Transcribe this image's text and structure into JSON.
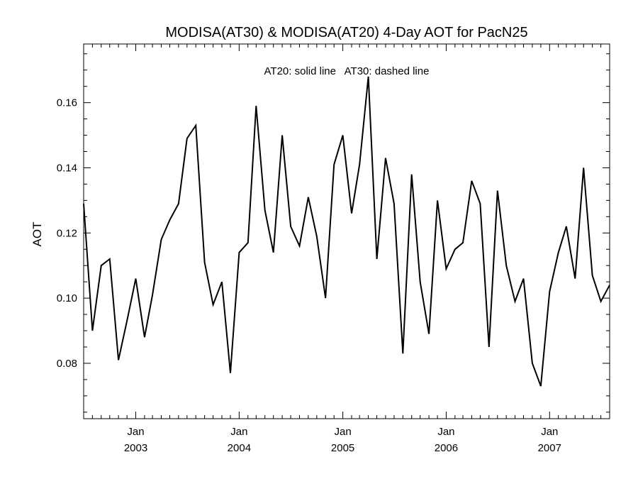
{
  "chart_data": {
    "type": "line",
    "title": "MODISA(AT30) & MODISA(AT20) 4-Day AOT for PacN25",
    "annotation": "AT20: solid line   AT30: dashed line",
    "ylabel": "AOT",
    "xlabel": "",
    "xlim": [
      "2002-07-01",
      "2007-08-01"
    ],
    "ylim": [
      0.063,
      0.178
    ],
    "yticks": [
      {
        "value": 0.08,
        "label": "0.08"
      },
      {
        "value": 0.1,
        "label": "0.10"
      },
      {
        "value": 0.12,
        "label": "0.12"
      },
      {
        "value": 0.14,
        "label": "0.14"
      },
      {
        "value": 0.16,
        "label": "0.16"
      }
    ],
    "xticks": [
      {
        "date": "2003-01-01",
        "month": "Jan",
        "year": "2003"
      },
      {
        "date": "2004-01-01",
        "month": "Jan",
        "year": "2004"
      },
      {
        "date": "2005-01-01",
        "month": "Jan",
        "year": "2005"
      },
      {
        "date": "2006-01-01",
        "month": "Jan",
        "year": "2006"
      },
      {
        "date": "2007-01-01",
        "month": "Jan",
        "year": "2007"
      }
    ],
    "grid": false,
    "legend": "none",
    "series": [
      {
        "style": "solid",
        "color": "#000000",
        "points": [
          [
            "2002-07-01",
            0.129
          ],
          [
            "2002-08-01",
            0.09
          ],
          [
            "2002-09-01",
            0.11
          ],
          [
            "2002-10-01",
            0.112
          ],
          [
            "2002-11-01",
            0.081
          ],
          [
            "2002-12-01",
            0.093
          ],
          [
            "2003-01-01",
            0.106
          ],
          [
            "2003-02-01",
            0.088
          ],
          [
            "2003-03-01",
            0.101
          ],
          [
            "2003-04-01",
            0.118
          ],
          [
            "2003-05-01",
            0.124
          ],
          [
            "2003-06-01",
            0.129
          ],
          [
            "2003-07-01",
            0.149
          ],
          [
            "2003-08-01",
            0.153
          ],
          [
            "2003-09-01",
            0.111
          ],
          [
            "2003-10-01",
            0.098
          ],
          [
            "2003-11-01",
            0.105
          ],
          [
            "2003-12-01",
            0.077
          ],
          [
            "2004-01-01",
            0.114
          ],
          [
            "2004-02-01",
            0.117
          ],
          [
            "2004-03-01",
            0.159
          ],
          [
            "2004-04-01",
            0.127
          ],
          [
            "2004-05-01",
            0.114
          ],
          [
            "2004-06-01",
            0.15
          ],
          [
            "2004-07-01",
            0.122
          ],
          [
            "2004-08-01",
            0.116
          ],
          [
            "2004-09-01",
            0.131
          ],
          [
            "2004-10-01",
            0.119
          ],
          [
            "2004-11-01",
            0.1
          ],
          [
            "2004-12-01",
            0.141
          ],
          [
            "2005-01-01",
            0.15
          ],
          [
            "2005-02-01",
            0.126
          ],
          [
            "2005-03-01",
            0.141
          ],
          [
            "2005-04-01",
            0.168
          ],
          [
            "2005-05-01",
            0.112
          ],
          [
            "2005-06-01",
            0.143
          ],
          [
            "2005-07-01",
            0.129
          ],
          [
            "2005-08-01",
            0.083
          ],
          [
            "2005-09-01",
            0.138
          ],
          [
            "2005-10-01",
            0.105
          ],
          [
            "2005-11-01",
            0.089
          ],
          [
            "2005-12-01",
            0.13
          ],
          [
            "2006-01-01",
            0.109
          ],
          [
            "2006-02-01",
            0.115
          ],
          [
            "2006-03-01",
            0.117
          ],
          [
            "2006-04-01",
            0.136
          ],
          [
            "2006-05-01",
            0.129
          ],
          [
            "2006-06-01",
            0.085
          ],
          [
            "2006-07-01",
            0.133
          ],
          [
            "2006-08-01",
            0.11
          ],
          [
            "2006-09-01",
            0.099
          ],
          [
            "2006-10-01",
            0.106
          ],
          [
            "2006-11-01",
            0.08
          ],
          [
            "2006-12-01",
            0.073
          ],
          [
            "2007-01-01",
            0.102
          ],
          [
            "2007-02-01",
            0.114
          ],
          [
            "2007-03-01",
            0.122
          ],
          [
            "2007-04-01",
            0.106
          ],
          [
            "2007-05-01",
            0.14
          ],
          [
            "2007-06-01",
            0.107
          ],
          [
            "2007-07-01",
            0.099
          ],
          [
            "2007-08-01",
            0.104
          ]
        ]
      }
    ]
  }
}
